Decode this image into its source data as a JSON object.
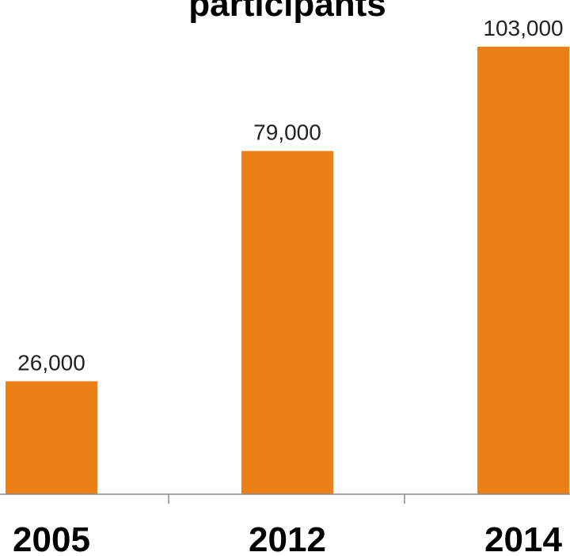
{
  "chart_data": {
    "type": "bar",
    "title": "participants",
    "categories": [
      "2005",
      "2012",
      "2014"
    ],
    "values": [
      26000,
      79000,
      103000
    ],
    "data_labels": [
      "26,000",
      "79,000",
      "103,000"
    ],
    "xlabel": "",
    "ylabel": "",
    "ylim": [
      0,
      103000
    ],
    "grid": false,
    "legend": "none",
    "bar_color": "#EC8017",
    "axis_color": "#8A8A8A"
  }
}
